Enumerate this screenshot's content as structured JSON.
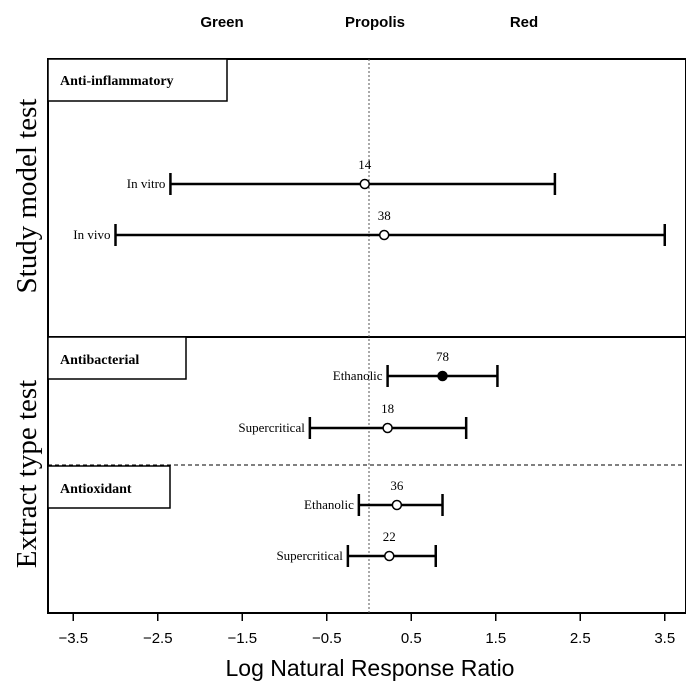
{
  "chart_data": {
    "type": "forest",
    "top_labels": [
      "Green",
      "Propolis",
      "Red"
    ],
    "xlabel": "Log Natural Response Ratio",
    "xlim": [
      -3.8,
      3.8
    ],
    "x_ticks": [
      -3.5,
      -2.5,
      -1.5,
      -0.5,
      0.5,
      1.5,
      2.5,
      3.5
    ],
    "x_tick_labels": [
      "−3.5",
      "−2.5",
      "−1.5",
      "−0.5",
      "0.5",
      "1.5",
      "2.5",
      "3.5"
    ],
    "reference_line": 0,
    "panels": [
      {
        "ylabel": "Study model test",
        "sections": [
          {
            "title": "Anti-inflammatory",
            "rows": [
              {
                "label": "In vitro",
                "n": "14",
                "estimate": -0.05,
                "ci_low": -2.35,
                "ci_high": 2.2,
                "filled": false
              },
              {
                "label": "In vivo",
                "n": "38",
                "estimate": 0.18,
                "ci_low": -3.0,
                "ci_high": 3.5,
                "filled": false
              }
            ]
          }
        ]
      },
      {
        "ylabel": "Extract type test",
        "sections": [
          {
            "title": "Antibacterial",
            "rows": [
              {
                "label": "Ethanolic",
                "n": "78",
                "estimate": 0.87,
                "ci_low": 0.22,
                "ci_high": 1.52,
                "filled": true
              },
              {
                "label": "Supercritical",
                "n": "18",
                "estimate": 0.22,
                "ci_low": -0.7,
                "ci_high": 1.15,
                "filled": false
              }
            ]
          },
          {
            "title": "Antioxidant",
            "rows": [
              {
                "label": "Ethanolic",
                "n": "36",
                "estimate": 0.33,
                "ci_low": -0.12,
                "ci_high": 0.87,
                "filled": false
              },
              {
                "label": "Supercritical",
                "n": "22",
                "estimate": 0.24,
                "ci_low": -0.25,
                "ci_high": 0.79,
                "filled": false
              }
            ]
          }
        ]
      }
    ]
  }
}
